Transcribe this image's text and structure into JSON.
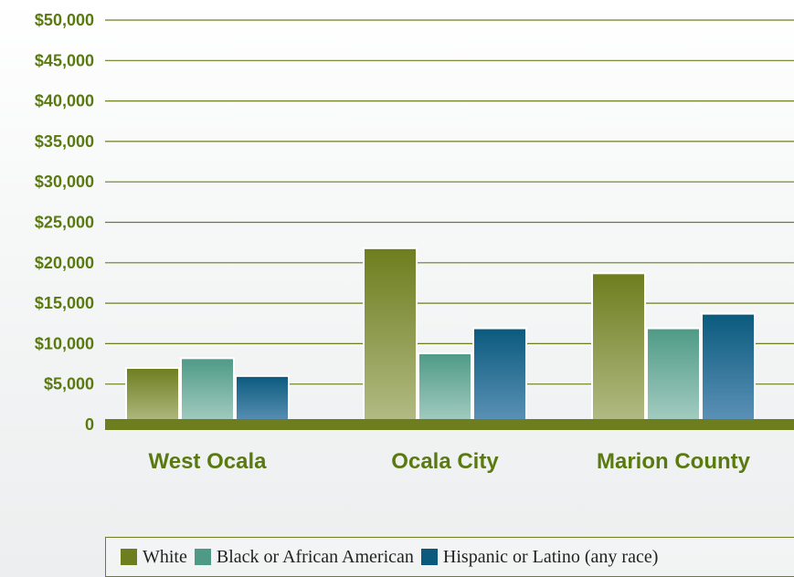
{
  "chart_data": {
    "type": "bar",
    "categories": [
      "West Ocala",
      "Ocala City",
      "Marion County"
    ],
    "series": [
      {
        "name": "White",
        "values": [
          7000,
          21800,
          18700
        ],
        "color": "#6e7d1e"
      },
      {
        "name": "Black or African American",
        "values": [
          8200,
          8800,
          11900
        ],
        "color": "#4e9a86"
      },
      {
        "name": "Hispanic or Latino (any race)",
        "values": [
          6000,
          11900,
          13700
        ],
        "color": "#0a5a7e"
      }
    ],
    "ylim": [
      0,
      50000
    ],
    "yticks": [
      0,
      5000,
      10000,
      15000,
      20000,
      25000,
      30000,
      35000,
      40000,
      45000,
      50000
    ],
    "ytick_labels": [
      "0",
      "$5,000",
      "$10,000",
      "$15,000",
      "$20,000",
      "$25,000",
      "$30,000",
      "$35,000",
      "$40,000",
      "$45,000",
      "$50,000"
    ],
    "grid": true,
    "legend_position": "bottom",
    "accent_color": "#6e7d1e",
    "label_color": "#5a7a10"
  }
}
